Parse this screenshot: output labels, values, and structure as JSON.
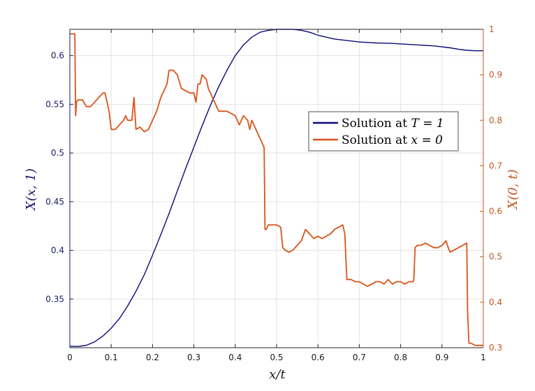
{
  "chart_data": {
    "type": "line",
    "xlabel": "x/t",
    "ylabel_left": "X(x, 1)",
    "ylabel_right": "X(0, t)",
    "xlim": [
      0,
      1
    ],
    "ylim_left": [
      0.3,
      0.627
    ],
    "ylim_right": [
      0.3,
      1.0
    ],
    "grid": true,
    "legend_position": "center-right",
    "x_ticks": [
      "0",
      "0.1",
      "0.2",
      "0.3",
      "0.4",
      "0.5",
      "0.6",
      "0.7",
      "0.8",
      "0.9",
      "1"
    ],
    "y_left_ticks": [
      "0.35",
      "0.4",
      "0.45",
      "0.5",
      "0.55",
      "0.6"
    ],
    "y_right_ticks": [
      "0.3",
      "0.4",
      "0.5",
      "0.6",
      "0.7",
      "0.8",
      "0.9",
      "1"
    ],
    "colors": {
      "series1": "#0a0a7a",
      "series2": "#d95319"
    },
    "series": [
      {
        "name": "Solution at T = 1",
        "legend_prefix": "Solution at ",
        "legend_math": "T = 1",
        "axis": "left",
        "x": [
          0,
          0.02,
          0.04,
          0.06,
          0.08,
          0.1,
          0.12,
          0.14,
          0.16,
          0.18,
          0.2,
          0.22,
          0.24,
          0.26,
          0.28,
          0.3,
          0.32,
          0.34,
          0.36,
          0.38,
          0.4,
          0.42,
          0.44,
          0.46,
          0.48,
          0.5,
          0.52,
          0.54,
          0.56,
          0.58,
          0.6,
          0.62,
          0.64,
          0.66,
          0.68,
          0.7,
          0.72,
          0.74,
          0.76,
          0.78,
          0.8,
          0.82,
          0.84,
          0.86,
          0.88,
          0.9,
          0.92,
          0.94,
          0.96,
          0.98,
          1.0
        ],
        "y": [
          0.3015,
          0.3013,
          0.3025,
          0.306,
          0.312,
          0.32,
          0.33,
          0.343,
          0.358,
          0.375,
          0.395,
          0.416,
          0.438,
          0.461,
          0.484,
          0.506,
          0.528,
          0.549,
          0.568,
          0.585,
          0.6,
          0.611,
          0.619,
          0.624,
          0.626,
          0.627,
          0.627,
          0.627,
          0.626,
          0.624,
          0.621,
          0.619,
          0.617,
          0.616,
          0.615,
          0.614,
          0.6135,
          0.613,
          0.6128,
          0.6125,
          0.612,
          0.6115,
          0.611,
          0.6105,
          0.61,
          0.609,
          0.608,
          0.6065,
          0.6055,
          0.605,
          0.605
        ]
      },
      {
        "name": "Solution at x = 0",
        "legend_prefix": "Solution at ",
        "legend_math": "x = 0",
        "axis": "right",
        "x": [
          0,
          0.01,
          0.012,
          0.014,
          0.016,
          0.02,
          0.03,
          0.04,
          0.05,
          0.06,
          0.07,
          0.08,
          0.085,
          0.09,
          0.095,
          0.1,
          0.11,
          0.12,
          0.13,
          0.135,
          0.14,
          0.15,
          0.155,
          0.16,
          0.17,
          0.18,
          0.19,
          0.2,
          0.21,
          0.22,
          0.23,
          0.235,
          0.24,
          0.25,
          0.26,
          0.27,
          0.28,
          0.29,
          0.3,
          0.305,
          0.31,
          0.315,
          0.32,
          0.33,
          0.335,
          0.34,
          0.35,
          0.36,
          0.37,
          0.38,
          0.39,
          0.4,
          0.41,
          0.42,
          0.43,
          0.435,
          0.44,
          0.45,
          0.46,
          0.47,
          0.472,
          0.475,
          0.48,
          0.49,
          0.5,
          0.51,
          0.515,
          0.52,
          0.53,
          0.54,
          0.55,
          0.56,
          0.57,
          0.58,
          0.59,
          0.6,
          0.61,
          0.62,
          0.63,
          0.64,
          0.65,
          0.66,
          0.665,
          0.67,
          0.68,
          0.69,
          0.7,
          0.71,
          0.72,
          0.73,
          0.74,
          0.75,
          0.76,
          0.77,
          0.78,
          0.79,
          0.8,
          0.81,
          0.82,
          0.83,
          0.832,
          0.835,
          0.84,
          0.85,
          0.86,
          0.87,
          0.88,
          0.89,
          0.9,
          0.91,
          0.915,
          0.92,
          0.93,
          0.94,
          0.95,
          0.96,
          0.962,
          0.965,
          0.97,
          0.98,
          0.99,
          1.0
        ],
        "y": [
          0.99,
          0.99,
          0.99,
          0.81,
          0.84,
          0.845,
          0.845,
          0.83,
          0.83,
          0.84,
          0.85,
          0.86,
          0.86,
          0.84,
          0.82,
          0.78,
          0.78,
          0.79,
          0.8,
          0.81,
          0.8,
          0.8,
          0.85,
          0.78,
          0.785,
          0.775,
          0.78,
          0.8,
          0.82,
          0.85,
          0.87,
          0.88,
          0.91,
          0.91,
          0.9,
          0.87,
          0.865,
          0.86,
          0.86,
          0.84,
          0.88,
          0.88,
          0.9,
          0.89,
          0.87,
          0.86,
          0.84,
          0.82,
          0.82,
          0.82,
          0.815,
          0.81,
          0.79,
          0.81,
          0.8,
          0.78,
          0.8,
          0.78,
          0.76,
          0.74,
          0.56,
          0.56,
          0.57,
          0.57,
          0.57,
          0.565,
          0.52,
          0.515,
          0.51,
          0.515,
          0.525,
          0.535,
          0.56,
          0.55,
          0.54,
          0.545,
          0.54,
          0.545,
          0.55,
          0.56,
          0.565,
          0.57,
          0.55,
          0.45,
          0.45,
          0.445,
          0.445,
          0.44,
          0.435,
          0.44,
          0.445,
          0.445,
          0.44,
          0.45,
          0.44,
          0.445,
          0.445,
          0.44,
          0.445,
          0.445,
          0.45,
          0.52,
          0.525,
          0.525,
          0.53,
          0.525,
          0.52,
          0.52,
          0.525,
          0.535,
          0.52,
          0.51,
          0.515,
          0.52,
          0.525,
          0.53,
          0.38,
          0.31,
          0.31,
          0.305,
          0.305,
          0.305
        ]
      }
    ]
  }
}
